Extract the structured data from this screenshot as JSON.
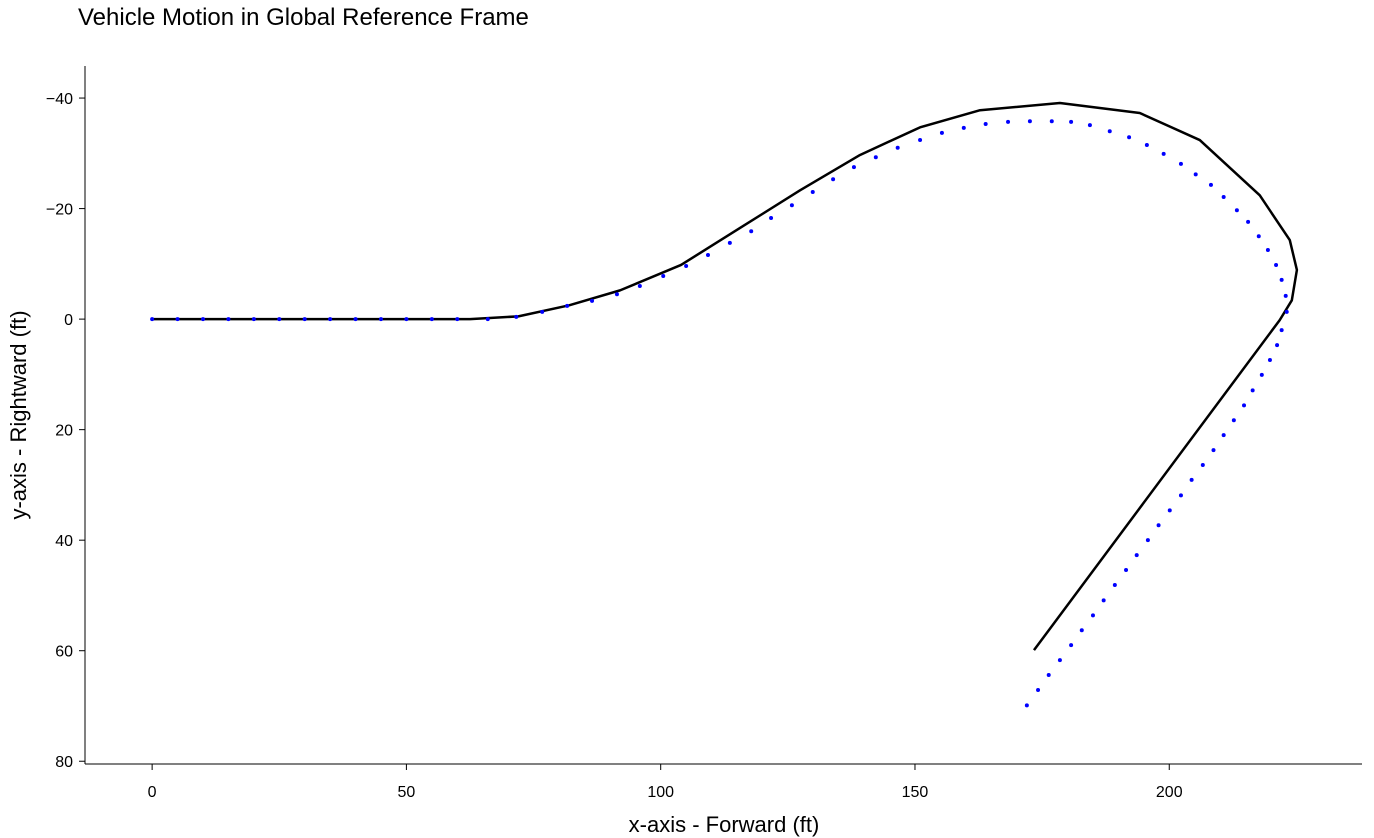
{
  "chart_data": {
    "type": "line",
    "title": "Vehicle Motion in Global Reference Frame",
    "xlabel": "x-axis - Forward (ft)",
    "ylabel": "y-axis - Rightward (ft)",
    "xlim": [
      -13.2,
      237.9
    ],
    "ylim": [
      -45.8,
      80.5
    ],
    "y_inverted": true,
    "xticks": [
      0,
      50,
      100,
      150,
      200
    ],
    "yticks": [
      {
        "value": -40,
        "label": "−40"
      },
      {
        "value": -20,
        "label": "−20"
      },
      0,
      20,
      40,
      60,
      80
    ],
    "grid": false,
    "series": [
      {
        "mode": "line",
        "color": "#000000",
        "x": [
          0,
          62.5,
          72,
          82,
          92,
          104,
          115.6,
          127.4,
          139.2,
          151,
          162.8,
          178.5,
          194.2,
          206,
          217.8,
          223.7,
          225.1,
          224.1,
          221.7,
          173.4
        ],
        "values": [
          0,
          0,
          -0.5,
          -2.5,
          -5.2,
          -9.8,
          -16.5,
          -23.3,
          -29.7,
          -34.7,
          -37.8,
          -39.1,
          -37.3,
          -32.4,
          -22.4,
          -14.3,
          -8.9,
          -3.4,
          0.2,
          59.9
        ]
      },
      {
        "mode": "markers",
        "color": "#0000ff",
        "x": [
          0,
          5,
          10,
          15,
          20,
          25,
          30,
          35,
          40,
          45,
          50,
          55,
          60,
          66,
          71.6,
          76.7,
          81.6,
          86.5,
          91.4,
          95.9,
          100.5,
          105.0,
          109.3,
          113.6,
          117.8,
          121.7,
          125.8,
          129.9,
          133.9,
          138.0,
          142.3,
          146.6,
          151.0,
          155.3,
          159.6,
          163.9,
          168.3,
          172.6,
          176.9,
          180.7,
          184.4,
          188.3,
          192.1,
          195.6,
          198.9,
          202.3,
          205.2,
          208.2,
          210.7,
          213.3,
          215.5,
          217.6,
          219.4,
          221.0,
          222.1,
          222.9,
          223.1,
          222.1,
          221.2,
          219.8,
          218.2,
          216.4,
          214.7,
          212.7,
          210.7,
          208.7,
          206.6,
          204.4,
          202.3,
          200.1,
          197.9,
          195.8,
          193.6,
          191.5,
          189.3,
          187.1,
          185.0,
          182.8,
          180.7,
          178.5,
          176.3,
          174.2,
          172.0
        ],
        "values": [
          0,
          0,
          0,
          0,
          0,
          0,
          0,
          0,
          0,
          0,
          0,
          0,
          0,
          0,
          -0.4,
          -1.3,
          -2.4,
          -3.3,
          -4.5,
          -6.0,
          -7.8,
          -9.6,
          -11.6,
          -13.8,
          -15.9,
          -18.3,
          -20.6,
          -23.0,
          -25.3,
          -27.5,
          -29.3,
          -31.0,
          -32.4,
          -33.7,
          -34.6,
          -35.3,
          -35.7,
          -35.8,
          -35.8,
          -35.7,
          -35.1,
          -34.0,
          -32.9,
          -31.5,
          -29.9,
          -28.1,
          -26.2,
          -24.3,
          -22.1,
          -19.7,
          -17.6,
          -15.0,
          -12.5,
          -9.8,
          -7.1,
          -4.2,
          -1.3,
          2.0,
          4.7,
          7.4,
          10.1,
          12.9,
          15.6,
          18.3,
          21.0,
          23.7,
          26.4,
          29.1,
          31.9,
          34.6,
          37.3,
          40.0,
          42.7,
          45.4,
          48.1,
          50.9,
          53.6,
          56.3,
          59.0,
          61.7,
          64.4,
          67.1,
          69.9
        ]
      }
    ]
  }
}
